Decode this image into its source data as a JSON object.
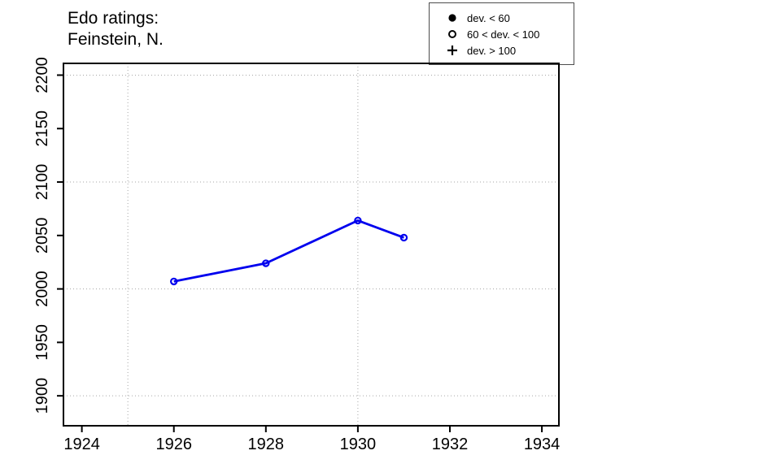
{
  "title": {
    "line1": "Edo ratings:",
    "line2": "Feinstein, N."
  },
  "legend": {
    "items": [
      {
        "symbol": "filled-circle",
        "label": "dev. < 60"
      },
      {
        "symbol": "open-circle",
        "label": "60 < dev. < 100"
      },
      {
        "symbol": "plus",
        "label": "dev. > 100"
      }
    ]
  },
  "colors": {
    "series": "#0000EE",
    "grid": "#a6a6a6",
    "axis": "#000000",
    "legend_border": "#4d4d4d"
  },
  "chart_data": {
    "type": "line",
    "title": "Edo ratings: Feinstein, N.",
    "series": [
      {
        "name": "Edo rating",
        "marker": "open-circle",
        "marker_meaning": "60 < dev. < 100",
        "x": [
          1926,
          1928,
          1930,
          1931
        ],
        "y": [
          2007,
          2024,
          2064,
          2048
        ]
      }
    ],
    "xlabel": "",
    "ylabel": "",
    "x_ticks": [
      1924,
      1926,
      1928,
      1930,
      1932,
      1934
    ],
    "y_ticks": [
      1900,
      1950,
      2000,
      2050,
      2100,
      2150,
      2200
    ],
    "grid": true,
    "grid_x": [
      1925,
      1930
    ],
    "grid_y": [
      1900,
      2000,
      2100,
      2200
    ],
    "x_domain": [
      1923.6,
      1934.37
    ],
    "y_domain": [
      1872,
      2211
    ],
    "legend_position": "top-right",
    "legend_entries": [
      "dev. < 60",
      "60 < dev. < 100",
      "dev. > 100"
    ]
  }
}
